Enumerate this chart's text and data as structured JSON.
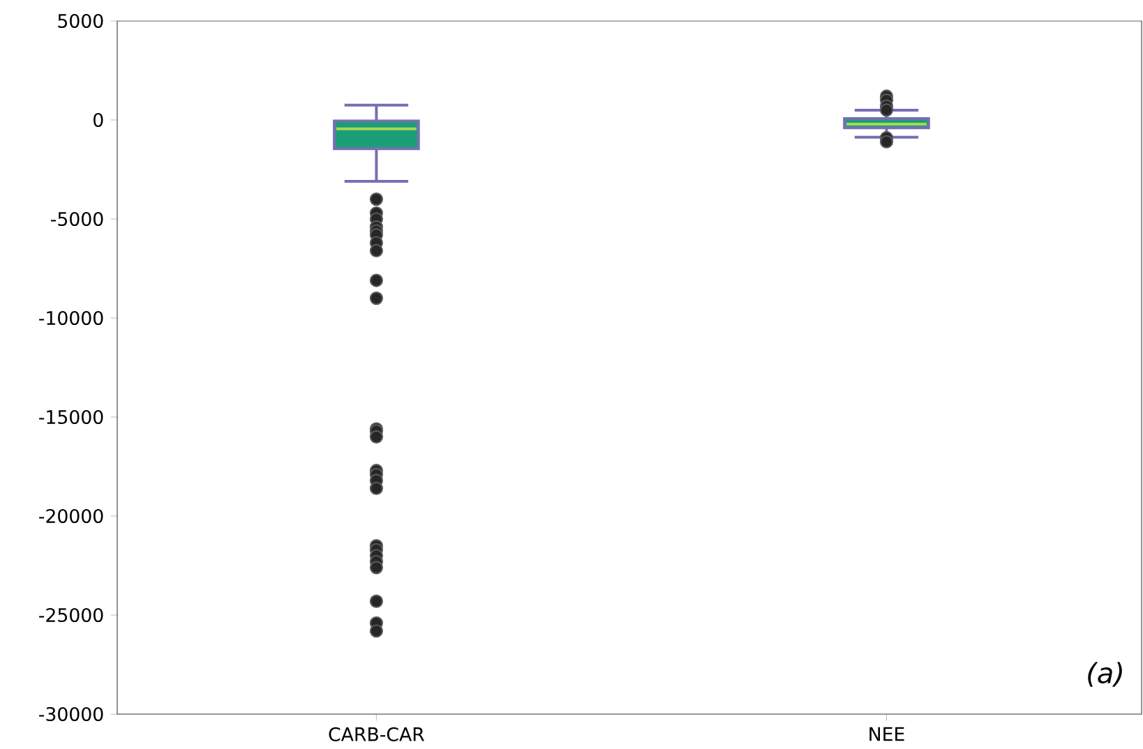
{
  "chart_data": {
    "type": "box",
    "categories": [
      "CARB-CAR",
      "NEE"
    ],
    "series": [
      {
        "color": "#1b9e77",
        "boxes": [
          {
            "low": -3100,
            "q1": -1450,
            "median": -450,
            "q3": -50,
            "high": 750,
            "outliers": [
              -4000,
              -4700,
              -5000,
              -5400,
              -5600,
              -5800,
              -6200,
              -6600,
              -8100,
              -9000,
              -15600,
              -15700,
              -16000,
              -17700,
              -17900,
              -18200,
              -18600,
              -21500,
              -21700,
              -22000,
              -22300,
              -22600,
              -24300,
              -25400,
              -25800
            ]
          },
          {
            "low": -870,
            "q1": -400,
            "median": -210,
            "q3": 70,
            "high": 490,
            "outliers": [
              1200,
              1000,
              700,
              500,
              -900,
              -1100
            ]
          }
        ]
      }
    ],
    "ylim": [
      -30000,
      5000
    ],
    "yticks": [
      -30000,
      -25000,
      -20000,
      -15000,
      -10000,
      -5000,
      0,
      5000
    ],
    "annotations": [
      "(a)"
    ]
  }
}
